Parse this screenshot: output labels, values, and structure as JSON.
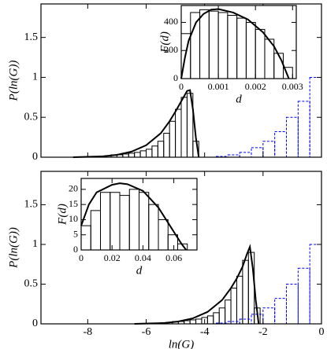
{
  "chart_data": [
    {
      "type": "histogram",
      "ylabel": "P(ln(G))",
      "xlim": [
        -9.6,
        0
      ],
      "ylim": [
        0,
        1.92
      ],
      "xticks": [
        -8,
        -6,
        -4,
        -2,
        0
      ],
      "yticks": [
        0,
        0.5,
        1,
        1.5
      ],
      "show_xtick_labels": false,
      "series": [
        {
          "color": "#000000",
          "linestyle": "solid",
          "bins": [
            -8.2,
            -8.0,
            -7.8,
            -7.6,
            -7.4,
            -7.2,
            -7.0,
            -6.8,
            -6.6,
            -6.4,
            -6.2,
            -6.0,
            -5.8,
            -5.6,
            -5.4,
            -5.2,
            -5.0,
            -4.8,
            -4.6,
            -4.4,
            -4.2
          ],
          "values": [
            0.005,
            0.01,
            0.01,
            0.015,
            0.02,
            0.03,
            0.03,
            0.04,
            0.05,
            0.06,
            0.08,
            0.1,
            0.14,
            0.2,
            0.3,
            0.45,
            0.6,
            0.75,
            0.8,
            0.2
          ]
        },
        {
          "color": "#0000ff",
          "linestyle": "dashed",
          "bins": [
            -3.6,
            -3.2,
            -2.8,
            -2.4,
            -2.0,
            -1.6,
            -1.2,
            -0.8,
            -0.4,
            0
          ],
          "values": [
            0.01,
            0.03,
            0.06,
            0.12,
            0.2,
            0.32,
            0.5,
            0.7,
            1.0
          ]
        }
      ],
      "curve": {
        "color": "#000000",
        "x": [
          -8.5,
          -7.5,
          -7,
          -6.5,
          -6,
          -5.5,
          -5.2,
          -5,
          -4.8,
          -4.6,
          -4.5,
          -4.4,
          -4.3,
          -4.2
        ],
        "y": [
          0,
          0.01,
          0.03,
          0.07,
          0.15,
          0.3,
          0.45,
          0.57,
          0.7,
          0.83,
          0.84,
          0.6,
          0.25,
          0
        ]
      }
    },
    {
      "type": "histogram",
      "xlabel": "d",
      "ylabel": "F(d)",
      "xlim": [
        0,
        0.0031
      ],
      "ylim": [
        0,
        520
      ],
      "xticks": [
        0,
        0.001,
        0.002,
        0.003
      ],
      "yticks": [
        0,
        200,
        400
      ],
      "show_xtick_labels": true,
      "series": [
        {
          "color": "#000000",
          "linestyle": "solid",
          "bins": [
            0,
            0.00025,
            0.0005,
            0.00075,
            0.001,
            0.00125,
            0.0015,
            0.00175,
            0.002,
            0.00225,
            0.0025,
            0.00275,
            0.003
          ],
          "values": [
            320,
            470,
            490,
            480,
            470,
            450,
            430,
            400,
            350,
            280,
            180,
            80
          ]
        }
      ],
      "curve": {
        "color": "#000000",
        "x": [
          0,
          0.0001,
          0.0002,
          0.0004,
          0.0006,
          0.0008,
          0.001,
          0.0014,
          0.0018,
          0.0022,
          0.0025,
          0.0027,
          0.0029
        ],
        "y": [
          0,
          150,
          270,
          400,
          460,
          490,
          495,
          470,
          420,
          330,
          230,
          130,
          0
        ]
      }
    },
    {
      "type": "histogram",
      "xlabel": "ln(G)",
      "ylabel": "P(ln(G))",
      "xlim": [
        -9.6,
        0
      ],
      "ylim": [
        0,
        1.92
      ],
      "xticks": [
        -8,
        -6,
        -4,
        -2,
        0
      ],
      "yticks": [
        0,
        0.5,
        1,
        1.5
      ],
      "show_xtick_labels": true,
      "series": [
        {
          "color": "#000000",
          "linestyle": "solid",
          "bins": [
            -6.1,
            -5.9,
            -5.7,
            -5.5,
            -5.3,
            -5.1,
            -4.9,
            -4.7,
            -4.5,
            -4.3,
            -4.1,
            -3.9,
            -3.7,
            -3.5,
            -3.3,
            -3.1,
            -2.9,
            -2.7,
            -2.5,
            -2.3,
            -2.1
          ],
          "values": [
            0.005,
            0.01,
            0.01,
            0.015,
            0.02,
            0.03,
            0.03,
            0.04,
            0.05,
            0.06,
            0.08,
            0.1,
            0.14,
            0.2,
            0.3,
            0.45,
            0.6,
            0.8,
            0.9,
            0.2
          ]
        },
        {
          "color": "#0000ff",
          "linestyle": "dashed",
          "bins": [
            -3.6,
            -3.2,
            -2.8,
            -2.4,
            -2.0,
            -1.6,
            -1.2,
            -0.8,
            -0.4,
            0
          ],
          "values": [
            0.01,
            0.03,
            0.06,
            0.12,
            0.2,
            0.32,
            0.5,
            0.7,
            1.0
          ]
        }
      ],
      "curve": {
        "color": "#000000",
        "x": [
          -6.4,
          -5.4,
          -4.9,
          -4.4,
          -3.9,
          -3.4,
          -3.1,
          -2.9,
          -2.7,
          -2.55,
          -2.45,
          -2.35,
          -2.25,
          -2.15
        ],
        "y": [
          0,
          0.01,
          0.03,
          0.07,
          0.15,
          0.3,
          0.45,
          0.57,
          0.72,
          0.88,
          0.97,
          0.7,
          0.3,
          0
        ]
      }
    },
    {
      "type": "histogram",
      "xlabel": "d",
      "ylabel": "F(d)",
      "xlim": [
        0,
        0.075
      ],
      "ylim": [
        0,
        23.6
      ],
      "xticks": [
        0,
        0.02,
        0.04,
        0.06
      ],
      "yticks": [
        0,
        5,
        10,
        15,
        20
      ],
      "show_xtick_labels": true,
      "series": [
        {
          "color": "#000000",
          "linestyle": "solid",
          "bins": [
            0,
            0.00625,
            0.0125,
            0.01875,
            0.025,
            0.03125,
            0.0375,
            0.04375,
            0.05,
            0.05625,
            0.0625,
            0.06875
          ],
          "values": [
            8,
            13,
            19,
            19,
            18,
            20,
            19,
            15,
            10,
            5,
            2
          ]
        }
      ],
      "curve": {
        "color": "#000000",
        "x": [
          0,
          0.005,
          0.01,
          0.02,
          0.025,
          0.03,
          0.04,
          0.05,
          0.055,
          0.06,
          0.065,
          0.068
        ],
        "y": [
          8,
          15,
          19,
          21.5,
          22,
          21.7,
          19.5,
          14,
          10,
          6,
          2,
          0
        ]
      }
    }
  ]
}
